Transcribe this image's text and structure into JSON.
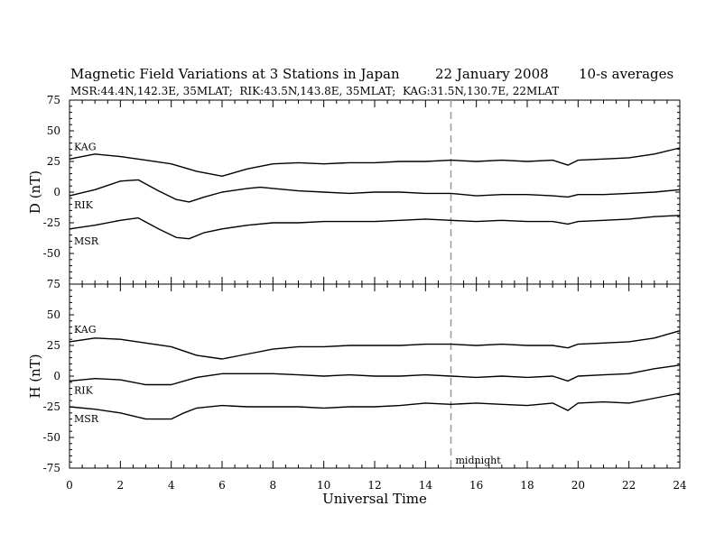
{
  "header": {
    "title": "Magnetic Field Variations at 3 Stations in Japan",
    "date": "22 January 2008",
    "averages": "10-s averages",
    "stations": "MSR:44.4N,142.3E, 35MLAT;  RIK:43.5N,143.8E, 35MLAT;  KAG:31.5N,130.7E, 22MLAT"
  },
  "chart_data": [
    {
      "type": "line",
      "panel": "D",
      "ylabel": "D (nT)",
      "xlabel": "Universal Time",
      "xlim": [
        0,
        24
      ],
      "ylim": [
        -75,
        75
      ],
      "x_ticks": [
        "0",
        "2",
        "4",
        "6",
        "8",
        "10",
        "12",
        "14",
        "16",
        "18",
        "20",
        "22",
        "24"
      ],
      "y_ticks": [
        "75",
        "50",
        "25",
        "0",
        "-25",
        "-50",
        "-75"
      ],
      "marker": {
        "x": 15,
        "label": ""
      },
      "series": [
        {
          "name": "KAG",
          "x": [
            0,
            1,
            2,
            3,
            4,
            5,
            6,
            7,
            8,
            9,
            10,
            11,
            12,
            13,
            14,
            15,
            16,
            17,
            18,
            19,
            19.6,
            20,
            21,
            22,
            23,
            24
          ],
          "y": [
            27,
            31,
            29,
            26,
            23,
            17,
            13,
            19,
            23,
            24,
            23,
            24,
            24,
            25,
            25,
            26,
            25,
            26,
            25,
            26,
            22,
            26,
            27,
            28,
            31,
            36
          ]
        },
        {
          "name": "RIK",
          "x": [
            0,
            1,
            2,
            2.7,
            3.5,
            4.2,
            4.7,
            5.3,
            6,
            7,
            7.5,
            8,
            9,
            10,
            11,
            12,
            13,
            14,
            15,
            16,
            17,
            18,
            19,
            19.6,
            20,
            21,
            22,
            23,
            24
          ],
          "y": [
            -3,
            2,
            9,
            10,
            1,
            -6,
            -8,
            -4,
            0,
            3,
            4,
            3,
            1,
            0,
            -1,
            0,
            0,
            -1,
            -1,
            -3,
            -2,
            -2,
            -3,
            -4,
            -2,
            -2,
            -1,
            0,
            2
          ]
        },
        {
          "name": "MSR",
          "x": [
            0,
            1,
            2,
            2.7,
            3.5,
            4.2,
            4.7,
            5.3,
            6,
            7,
            8,
            9,
            10,
            11,
            12,
            13,
            14,
            15,
            16,
            17,
            18,
            19,
            19.6,
            20,
            21,
            22,
            23,
            24
          ],
          "y": [
            -30,
            -27,
            -23,
            -21,
            -30,
            -37,
            -38,
            -33,
            -30,
            -27,
            -25,
            -25,
            -24,
            -24,
            -24,
            -23,
            -22,
            -23,
            -24,
            -23,
            -24,
            -24,
            -26,
            -24,
            -23,
            -22,
            -20,
            -19
          ]
        }
      ]
    },
    {
      "type": "line",
      "panel": "H",
      "ylabel": "H (nT)",
      "xlabel": "Universal Time",
      "xlim": [
        0,
        24
      ],
      "ylim": [
        -75,
        75
      ],
      "x_ticks": [
        "0",
        "2",
        "4",
        "6",
        "8",
        "10",
        "12",
        "14",
        "16",
        "18",
        "20",
        "22",
        "24"
      ],
      "y_ticks": [
        "75",
        "50",
        "25",
        "0",
        "-25",
        "-50",
        "-75"
      ],
      "marker": {
        "x": 15,
        "label": "midnight"
      },
      "series": [
        {
          "name": "KAG",
          "x": [
            0,
            1,
            2,
            3,
            4,
            5,
            6,
            7,
            8,
            9,
            10,
            11,
            12,
            13,
            14,
            15,
            16,
            17,
            18,
            19,
            19.6,
            20,
            21,
            22,
            23,
            24
          ],
          "y": [
            28,
            31,
            30,
            27,
            24,
            17,
            14,
            18,
            22,
            24,
            24,
            25,
            25,
            25,
            26,
            26,
            25,
            26,
            25,
            25,
            23,
            26,
            27,
            28,
            31,
            37
          ]
        },
        {
          "name": "RIK",
          "x": [
            0,
            1,
            2,
            3,
            4,
            4.5,
            5,
            6,
            7,
            8,
            9,
            10,
            11,
            12,
            13,
            14,
            15,
            16,
            17,
            18,
            19,
            19.6,
            20,
            21,
            22,
            23,
            24
          ],
          "y": [
            -4,
            -2,
            -3,
            -7,
            -7,
            -4,
            -1,
            2,
            2,
            2,
            1,
            0,
            1,
            0,
            0,
            1,
            0,
            -1,
            0,
            -1,
            0,
            -4,
            0,
            1,
            2,
            6,
            9
          ]
        },
        {
          "name": "MSR",
          "x": [
            0,
            1,
            2,
            3,
            4,
            4.5,
            5,
            6,
            7,
            8,
            9,
            10,
            11,
            12,
            13,
            14,
            15,
            16,
            17,
            18,
            19,
            19.6,
            20,
            21,
            22,
            23,
            24
          ],
          "y": [
            -25,
            -27,
            -30,
            -35,
            -35,
            -30,
            -26,
            -24,
            -25,
            -25,
            -25,
            -26,
            -25,
            -25,
            -24,
            -22,
            -23,
            -22,
            -23,
            -24,
            -22,
            -28,
            -22,
            -21,
            -22,
            -18,
            -14
          ]
        }
      ]
    }
  ]
}
